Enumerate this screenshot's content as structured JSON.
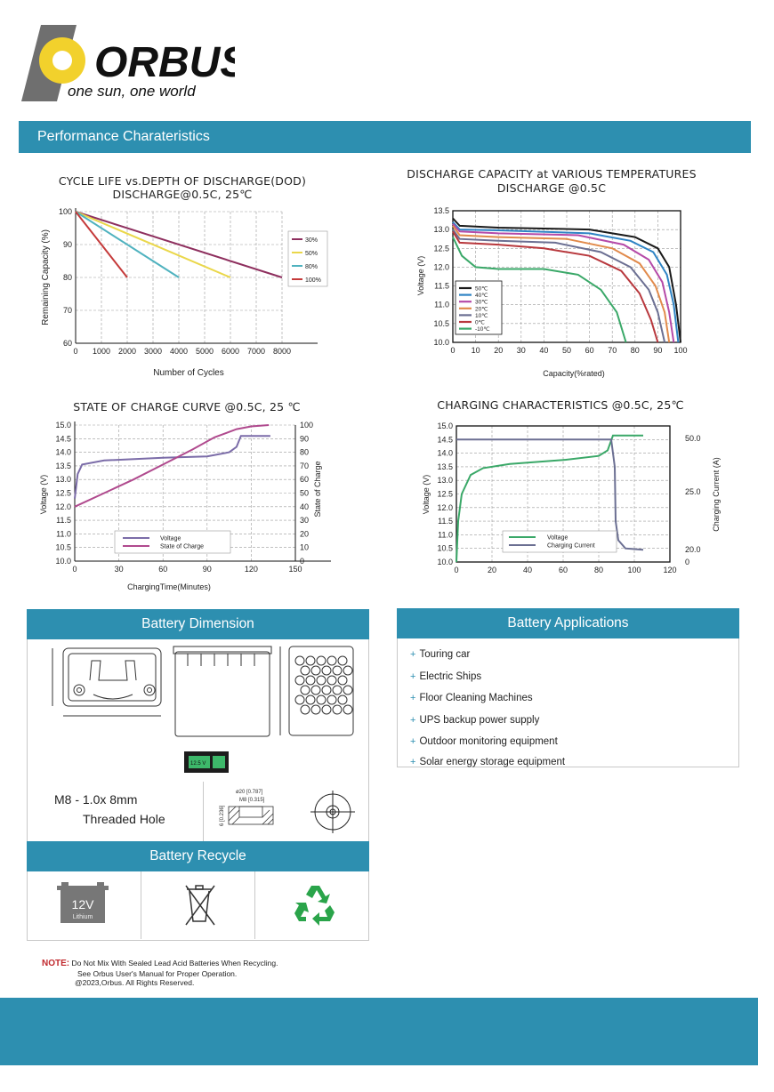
{
  "brand": {
    "name": "ORBUS",
    "slogan": "one sun, one world",
    "colors": {
      "accent": "#2d8fb0",
      "logo_yellow": "#f2d12c",
      "logo_gray": "#6f6f6f",
      "note_red": "#c0282d"
    }
  },
  "section_title": "Performance Charateristics",
  "charts": {
    "cycle": {
      "title1": "CYCLE LIFE vs.DEPTH OF DISCHARGE(DOD)",
      "title2": "DISCHARGE@0.5C, 25℃",
      "ylabel": "Remaining Capacity (%)",
      "xlabel": "Number of Cycles"
    },
    "temp": {
      "title1": "DISCHARGE CAPACITY at VARIOUS TEMPERATURES",
      "title2": "DISCHARGE @0.5C",
      "ylabel": "Voltage (V)",
      "xlabel": "Capacity(%rated)"
    },
    "soc": {
      "title": "STATE OF CHARGE CURVE @0.5C, 25 ℃",
      "ylabel": "Voltage (V)",
      "ylabel2": "State of Charge",
      "xlabel": "ChargingTime(Minutes)"
    },
    "charging": {
      "title": "CHARGING CHARACTERISTICS @0.5C, 25℃",
      "ylabel": "Voltage (V)",
      "ylabel2": "Charging Current (A)"
    }
  },
  "chart_data": [
    {
      "type": "line",
      "title": "CYCLE LIFE vs.DEPTH OF DISCHARGE(DOD) DISCHARGE@0.5C, 25℃",
      "xlabel": "Number of Cycles",
      "ylabel": "Remaining Capacity (%)",
      "xlim": [
        0,
        8000
      ],
      "ylim": [
        60,
        100
      ],
      "xticks": [
        0,
        1000,
        2000,
        3000,
        4000,
        5000,
        6000,
        7000,
        8000
      ],
      "yticks": [
        60,
        70,
        80,
        90,
        100
      ],
      "grid": true,
      "legend": "right",
      "series": [
        {
          "name": "30%",
          "color": "#8e2f5e",
          "points": [
            [
              0,
              100
            ],
            [
              8000,
              80
            ]
          ]
        },
        {
          "name": "50%",
          "color": "#ead74a",
          "points": [
            [
              0,
              100
            ],
            [
              6000,
              80
            ]
          ]
        },
        {
          "name": "80%",
          "color": "#4fb2bf",
          "points": [
            [
              0,
              100
            ],
            [
              4000,
              80
            ]
          ]
        },
        {
          "name": "100%",
          "color": "#c53a3a",
          "points": [
            [
              0,
              100
            ],
            [
              2000,
              80
            ]
          ]
        }
      ]
    },
    {
      "type": "line",
      "title": "DISCHARGE CAPACITY at VARIOUS TEMPERATURES DISCHARGE @0.5C",
      "xlabel": "Capacity(%rated)",
      "ylabel": "Voltage (V)",
      "xlim": [
        0,
        100
      ],
      "ylim": [
        10.0,
        13.5
      ],
      "xticks": [
        0,
        10,
        20,
        30,
        40,
        50,
        60,
        70,
        80,
        90,
        100
      ],
      "yticks": [
        "10.0",
        "10.5",
        "11.0",
        "11.5",
        "12.0",
        "12.5",
        "13.0",
        "13.5"
      ],
      "grid": true,
      "legend": "bottom-left",
      "series": [
        {
          "name": "50℃",
          "color": "#1a1a1a",
          "points": [
            [
              0,
              13.3
            ],
            [
              3,
              13.1
            ],
            [
              20,
              13.05
            ],
            [
              60,
              13.0
            ],
            [
              80,
              12.8
            ],
            [
              90,
              12.5
            ],
            [
              95,
              12.0
            ],
            [
              98,
              11.0
            ],
            [
              100,
              10.0
            ]
          ]
        },
        {
          "name": "40℃",
          "color": "#2f84c5",
          "points": [
            [
              0,
              13.2
            ],
            [
              3,
              13.0
            ],
            [
              20,
              12.98
            ],
            [
              60,
              12.9
            ],
            [
              78,
              12.7
            ],
            [
              88,
              12.4
            ],
            [
              94,
              11.8
            ],
            [
              97,
              11.0
            ],
            [
              99,
              10.0
            ]
          ]
        },
        {
          "name": "30℃",
          "color": "#b54aa8",
          "points": [
            [
              0,
              13.15
            ],
            [
              3,
              12.95
            ],
            [
              20,
              12.9
            ],
            [
              55,
              12.85
            ],
            [
              75,
              12.6
            ],
            [
              86,
              12.2
            ],
            [
              92,
              11.6
            ],
            [
              95,
              10.8
            ],
            [
              97,
              10.0
            ]
          ]
        },
        {
          "name": "20℃",
          "color": "#e18a4b",
          "points": [
            [
              0,
              13.1
            ],
            [
              3,
              12.85
            ],
            [
              20,
              12.8
            ],
            [
              50,
              12.75
            ],
            [
              70,
              12.5
            ],
            [
              82,
              12.1
            ],
            [
              89,
              11.5
            ],
            [
              93,
              10.8
            ],
            [
              95,
              10.0
            ]
          ]
        },
        {
          "name": "10℃",
          "color": "#6b6f92",
          "points": [
            [
              0,
              13.0
            ],
            [
              3,
              12.75
            ],
            [
              20,
              12.7
            ],
            [
              45,
              12.65
            ],
            [
              65,
              12.4
            ],
            [
              78,
              12.0
            ],
            [
              86,
              11.4
            ],
            [
              90,
              10.8
            ],
            [
              93,
              10.0
            ]
          ]
        },
        {
          "name": "0℃",
          "color": "#b8383d",
          "points": [
            [
              0,
              12.95
            ],
            [
              3,
              12.65
            ],
            [
              20,
              12.6
            ],
            [
              40,
              12.5
            ],
            [
              60,
              12.3
            ],
            [
              74,
              11.9
            ],
            [
              82,
              11.3
            ],
            [
              87,
              10.6
            ],
            [
              90,
              10.0
            ]
          ]
        },
        {
          "name": "-10℃",
          "color": "#3aa868",
          "points": [
            [
              0,
              12.8
            ],
            [
              4,
              12.3
            ],
            [
              10,
              12.0
            ],
            [
              20,
              11.95
            ],
            [
              40,
              11.95
            ],
            [
              55,
              11.8
            ],
            [
              65,
              11.4
            ],
            [
              72,
              10.8
            ],
            [
              76,
              10.0
            ]
          ]
        }
      ]
    },
    {
      "type": "line",
      "title": "STATE OF CHARGE CURVE @0.5C, 25 ℃",
      "xlabel": "ChargingTime(Minutes)",
      "ylabel": "Voltage (V)",
      "y2label": "State of Charge",
      "xlim": [
        0,
        150
      ],
      "ylim": [
        10.0,
        15.0
      ],
      "y2lim": [
        0,
        100
      ],
      "xticks": [
        0,
        30,
        60,
        90,
        120,
        150
      ],
      "yticks": [
        "10.0",
        "10.5",
        "11.0",
        "11.5",
        "12.0",
        "12.5",
        "13.0",
        "13.5",
        "14.0",
        "14.5",
        "15.0"
      ],
      "y2ticks": [
        0,
        10,
        20,
        30,
        40,
        50,
        60,
        70,
        80,
        90,
        100
      ],
      "grid": true,
      "legend": "bottom-center",
      "series": [
        {
          "name": "Voltage",
          "axis": "left",
          "color": "#7b6ca8",
          "points": [
            [
              0,
              12.3
            ],
            [
              2,
              13.2
            ],
            [
              5,
              13.55
            ],
            [
              20,
              13.7
            ],
            [
              60,
              13.8
            ],
            [
              90,
              13.85
            ],
            [
              105,
              14.0
            ],
            [
              110,
              14.2
            ],
            [
              113,
              14.6
            ],
            [
              133,
              14.6
            ]
          ]
        },
        {
          "name": "State of Charge",
          "axis": "right",
          "color": "#b04a8e",
          "points": [
            [
              0,
              40
            ],
            [
              20,
              50
            ],
            [
              40,
              60
            ],
            [
              60,
              71
            ],
            [
              80,
              82
            ],
            [
              95,
              91
            ],
            [
              110,
              97
            ],
            [
              120,
              99
            ],
            [
              132,
              100
            ]
          ]
        }
      ]
    },
    {
      "type": "line",
      "title": "CHARGING CHARACTERISTICS @0.5C, 25℃",
      "xlabel": "",
      "ylabel": "Voltage (V)",
      "y2label": "Charging Current (A)",
      "xlim": [
        0,
        120
      ],
      "ylim": [
        10.0,
        15.0
      ],
      "xticks": [
        0,
        20,
        40,
        60,
        80,
        100,
        120
      ],
      "yticks": [
        "10.0",
        "10.5",
        "11.0",
        "11.5",
        "12.0",
        "12.5",
        "13.0",
        "13.5",
        "14.0",
        "14.5",
        "15.0"
      ],
      "y2ticks": [
        "0",
        "20.0",
        "25.0",
        "50.0"
      ],
      "grid": true,
      "legend": "bottom-center",
      "series": [
        {
          "name": "Voltage",
          "color": "#3aa868",
          "points": [
            [
              0,
              10.0
            ],
            [
              1,
              11.5
            ],
            [
              3,
              12.5
            ],
            [
              8,
              13.2
            ],
            [
              15,
              13.45
            ],
            [
              30,
              13.6
            ],
            [
              60,
              13.75
            ],
            [
              80,
              13.9
            ],
            [
              85,
              14.1
            ],
            [
              88,
              14.65
            ],
            [
              105,
              14.65
            ]
          ]
        },
        {
          "name": "Charging Current",
          "color": "#6b6f92",
          "points": [
            [
              0,
              14.5
            ],
            [
              87,
              14.5
            ],
            [
              89,
              13.5
            ],
            [
              89.5,
              11.5
            ],
            [
              91,
              10.8
            ],
            [
              95,
              10.5
            ],
            [
              105,
              10.45
            ]
          ]
        }
      ]
    }
  ],
  "dimension": {
    "title": "Battery Dimension",
    "thread_line1": "M8 - 1.0x 8mm",
    "thread_line2": "Threaded Hole",
    "thread_d1": "ø20 [0.787]",
    "thread_d2": "M8 [0.315]",
    "thread_d3": "6 [0.236]",
    "screen_text": "12.5 V"
  },
  "applications": {
    "title": "Battery Applications",
    "items": [
      "Touring car",
      "Electric Ships",
      "Floor Cleaning Machines",
      "UPS backup power supply",
      "Outdoor monitoring equipment",
      "Solar energy storage equipment"
    ]
  },
  "recycle": {
    "title": "Battery Recycle",
    "battery_voltage": "12V",
    "battery_type": "Lithium"
  },
  "note": {
    "label": "NOTE:",
    "line1": "Do Not Mix With Sealed Lead Acid Batteries When Recycling.",
    "line2": "See Orbus User's Manual for Proper Operation.",
    "line3": "@2023,Orbus. All Rights Reserved."
  }
}
